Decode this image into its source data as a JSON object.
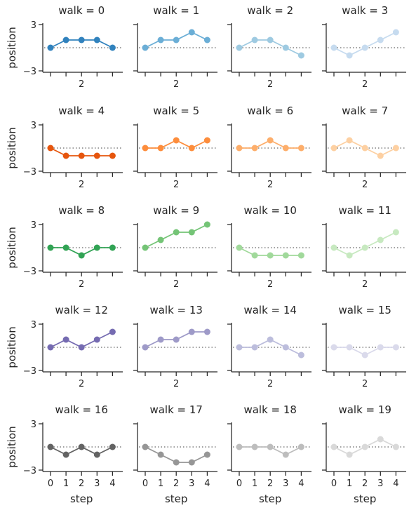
{
  "chart_data": {
    "type": "line",
    "layout": "facet-grid",
    "rows": 5,
    "cols": 4,
    "xlabel": "step",
    "ylabel": "position",
    "x": [
      0,
      1,
      2,
      3,
      4
    ],
    "xticklabels_inner": [
      "2"
    ],
    "xticklabels_bottom": [
      "0",
      "1",
      "2",
      "3",
      "4"
    ],
    "yticklabels": [
      "3",
      "−3"
    ],
    "yticks": [
      3,
      -3
    ],
    "ylim": [
      -3.5,
      3.5
    ],
    "reference_line": {
      "y": 0,
      "style": "dotted",
      "color": "#808080"
    },
    "panels": [
      {
        "title": "walk = 0",
        "values": [
          0,
          1,
          1,
          1,
          0
        ],
        "color": "#3182bd"
      },
      {
        "title": "walk = 1",
        "values": [
          0,
          1,
          1,
          2,
          1
        ],
        "color": "#6baed6"
      },
      {
        "title": "walk = 2",
        "values": [
          0,
          1,
          1,
          0,
          -1
        ],
        "color": "#9ecae1"
      },
      {
        "title": "walk = 3",
        "values": [
          0,
          -1,
          0,
          1,
          2
        ],
        "color": "#c6dbef"
      },
      {
        "title": "walk = 4",
        "values": [
          0,
          -1,
          -1,
          -1,
          -1
        ],
        "color": "#e6550d"
      },
      {
        "title": "walk = 5",
        "values": [
          0,
          0,
          1,
          0,
          1
        ],
        "color": "#fd8d3c"
      },
      {
        "title": "walk = 6",
        "values": [
          0,
          0,
          1,
          0,
          0
        ],
        "color": "#fdae6b"
      },
      {
        "title": "walk = 7",
        "values": [
          0,
          1,
          0,
          -1,
          0
        ],
        "color": "#fdd0a2"
      },
      {
        "title": "walk = 8",
        "values": [
          0,
          0,
          -1,
          0,
          0
        ],
        "color": "#31a354"
      },
      {
        "title": "walk = 9",
        "values": [
          0,
          1,
          2,
          2,
          3
        ],
        "color": "#74c476"
      },
      {
        "title": "walk = 10",
        "values": [
          0,
          -1,
          -1,
          -1,
          -1
        ],
        "color": "#a1d99b"
      },
      {
        "title": "walk = 11",
        "values": [
          0,
          -1,
          0,
          1,
          2
        ],
        "color": "#c7e9c0"
      },
      {
        "title": "walk = 12",
        "values": [
          0,
          1,
          0,
          1,
          2
        ],
        "color": "#756bb1"
      },
      {
        "title": "walk = 13",
        "values": [
          0,
          1,
          1,
          2,
          2
        ],
        "color": "#9e9ac8"
      },
      {
        "title": "walk = 14",
        "values": [
          0,
          0,
          1,
          0,
          -1
        ],
        "color": "#bcbddc"
      },
      {
        "title": "walk = 15",
        "values": [
          0,
          0,
          -1,
          0,
          0
        ],
        "color": "#dadaeb"
      },
      {
        "title": "walk = 16",
        "values": [
          0,
          -1,
          0,
          -1,
          0
        ],
        "color": "#636363"
      },
      {
        "title": "walk = 17",
        "values": [
          0,
          -1,
          -2,
          -2,
          -1
        ],
        "color": "#969696"
      },
      {
        "title": "walk = 18",
        "values": [
          0,
          0,
          0,
          -1,
          0
        ],
        "color": "#bdbdbd"
      },
      {
        "title": "walk = 19",
        "values": [
          0,
          -1,
          0,
          1,
          0
        ],
        "color": "#d9d9d9"
      }
    ]
  }
}
